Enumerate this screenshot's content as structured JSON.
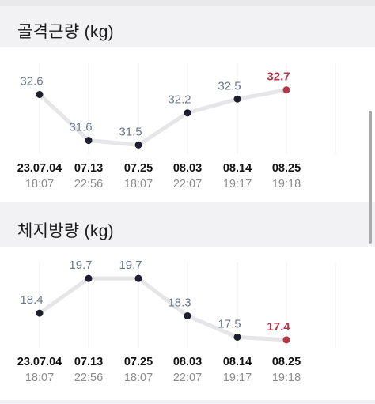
{
  "chart_data": [
    {
      "type": "line",
      "title": "골격근량 (kg)",
      "x": [
        {
          "date": "23.07.04",
          "time": "18:07"
        },
        {
          "date": "07.13",
          "time": "22:56"
        },
        {
          "date": "07.25",
          "time": "18:07"
        },
        {
          "date": "08.03",
          "time": "22:07"
        },
        {
          "date": "08.14",
          "time": "19:17"
        },
        {
          "date": "08.25",
          "time": "19:18"
        }
      ],
      "values": [
        32.6,
        31.6,
        31.5,
        32.2,
        32.5,
        32.7
      ],
      "labels": [
        "32.6",
        "31.6",
        "31.5",
        "32.2",
        "32.5",
        "32.7"
      ],
      "ylim": [
        31.3,
        32.9
      ],
      "highlight_last": true
    },
    {
      "type": "line",
      "title": "체지방량 (kg)",
      "x": [
        {
          "date": "23.07.04",
          "time": "18:07"
        },
        {
          "date": "07.13",
          "time": "22:56"
        },
        {
          "date": "07.25",
          "time": "18:07"
        },
        {
          "date": "08.03",
          "time": "22:07"
        },
        {
          "date": "08.14",
          "time": "19:17"
        },
        {
          "date": "08.25",
          "time": "19:18"
        }
      ],
      "values": [
        18.4,
        19.7,
        19.7,
        18.3,
        17.5,
        17.4
      ],
      "labels": [
        "18.4",
        "19.7",
        "19.7",
        "18.3",
        "17.5",
        "17.4"
      ],
      "ylim": [
        17.1,
        20.0
      ],
      "highlight_last": true
    }
  ],
  "colors": {
    "line": "#e6e6e8",
    "point": "#1e1f2d",
    "highlight": "#b5374a",
    "value_label": "#6c7886",
    "date_label": "#111111",
    "time_label": "#8c8c8c",
    "gridline": "#ececee"
  }
}
